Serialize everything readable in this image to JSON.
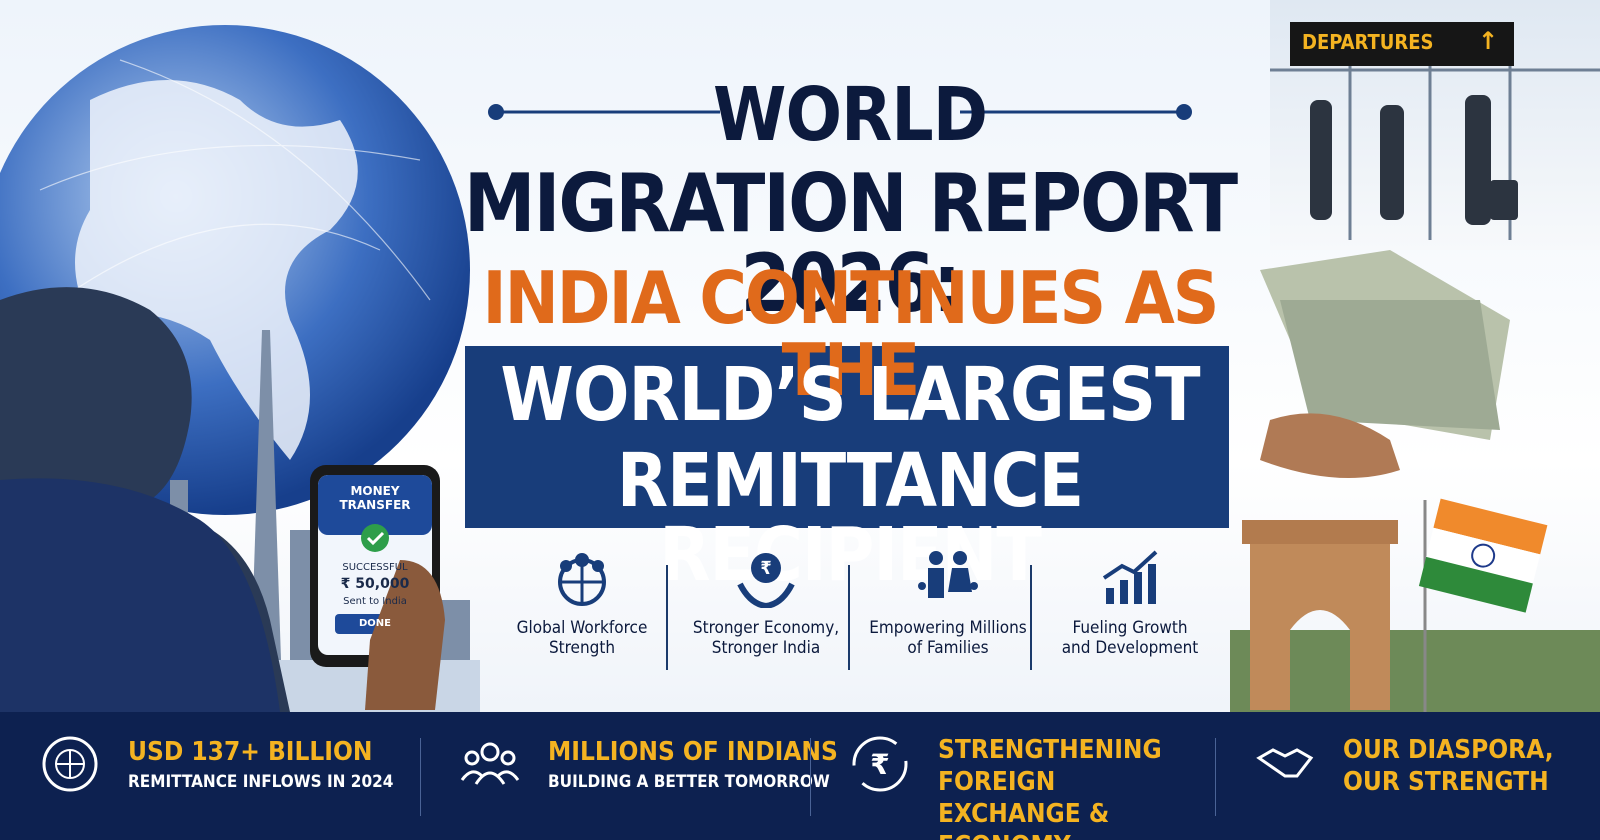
{
  "departures_sign": "DEPARTURES",
  "title": {
    "lines": [
      "WORLD",
      "MIGRATION REPORT 2026:",
      "INDIA CONTINUES AS THE",
      "WORLD’S LARGEST",
      "REMITTANCE RECIPIENT"
    ]
  },
  "phone": {
    "heading": [
      "MONEY",
      "TRANSFER"
    ],
    "status": "SUCCESSFUL",
    "amount": "₹ 50,000",
    "note": "Sent to India",
    "button": "DONE"
  },
  "features": [
    {
      "lines": [
        "Global Workforce",
        "Strength"
      ]
    },
    {
      "lines": [
        "Stronger Economy,",
        "Stronger India"
      ]
    },
    {
      "lines": [
        "Empowering Millions",
        "of Families"
      ]
    },
    {
      "lines": [
        "Fueling Growth",
        "and Development"
      ]
    }
  ],
  "stats": [
    {
      "headline": [
        "USD 137+ BILLION"
      ],
      "subline": "REMITTANCE INFLOWS IN 2024"
    },
    {
      "headline": [
        "MILLIONS OF INDIANS"
      ],
      "subline": "BUILDING A BETTER TOMORROW"
    },
    {
      "headline": [
        "STRENGTHENING FOREIGN",
        "EXCHANGE & ECONOMY"
      ]
    },
    {
      "headline": [
        "OUR DIASPORA,",
        "OUR STRENGTH"
      ]
    }
  ]
}
